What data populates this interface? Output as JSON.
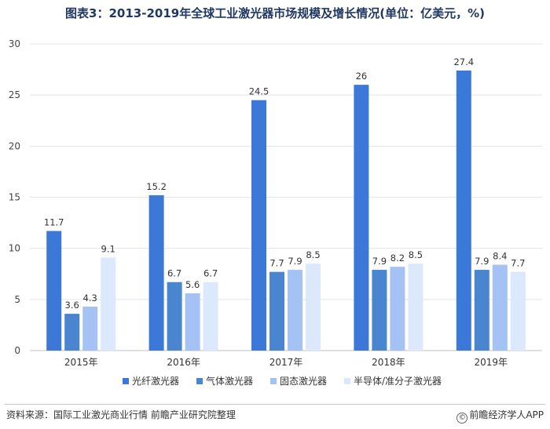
{
  "title": "图表3：2013-2019年全球工业激光器市场规模及增长情况(单位：亿美元，%)",
  "source": "资料来源：国际工业激光商业行情 前瞻产业研究院整理",
  "app_label": "前瞻经济学人APP",
  "app_icon": "copyright-circle-icon",
  "chart_data": {
    "type": "bar",
    "title": "图表3：2013-2019年全球工业激光器市场规模及增长情况(单位：亿美元，%)",
    "categories": [
      "2015年",
      "2016年",
      "2017年",
      "2018年",
      "2019年"
    ],
    "series": [
      {
        "name": "光纤激光器",
        "color": "#3c78d8",
        "values": [
          11.7,
          15.2,
          24.5,
          26,
          27.4
        ]
      },
      {
        "name": "气体激光器",
        "color": "#4a86cf",
        "values": [
          3.6,
          6.7,
          7.7,
          7.9,
          7.9
        ]
      },
      {
        "name": "固态激光器",
        "color": "#a4c2f4",
        "values": [
          4.3,
          5.6,
          7.9,
          8.2,
          8.4
        ]
      },
      {
        "name": "半导体/准分子激光器",
        "color": "#dce8fb",
        "values": [
          9.1,
          6.7,
          8.5,
          8.5,
          7.7
        ]
      }
    ],
    "yticks": [
      0,
      5,
      10,
      15,
      20,
      25,
      30
    ],
    "ylim": [
      0,
      30
    ],
    "grid": true,
    "legend": "bottom"
  }
}
